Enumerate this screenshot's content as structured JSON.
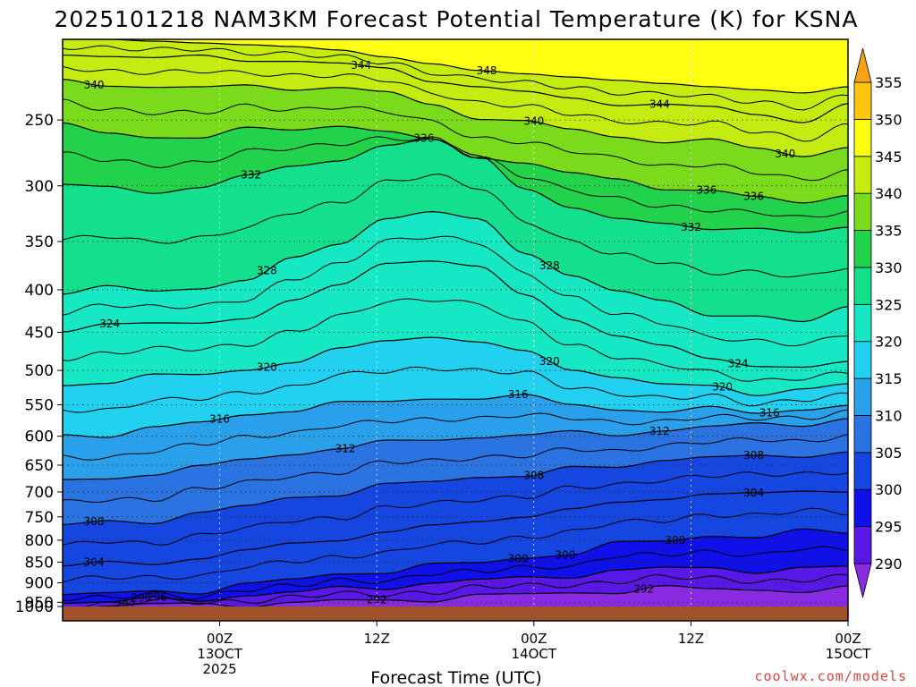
{
  "chart_data": {
    "type": "heatmap",
    "title": "2025101218 NAM3KM Forecast Potential Temperature (K) for KSNA",
    "xlabel": "Forecast Time (UTC)",
    "ylabel": "",
    "credit": "coolwx.com/models",
    "y_axis": {
      "scale": "log-pressure",
      "inverted": true,
      "range": [
        200,
        1000
      ],
      "ticks": [
        250,
        300,
        350,
        400,
        450,
        500,
        550,
        600,
        650,
        700,
        750,
        800,
        850,
        900,
        950,
        1000
      ],
      "tick_labels": [
        "250",
        "300",
        "350",
        "400",
        "450",
        "500",
        "550",
        "600",
        "650",
        "700",
        "750",
        "800",
        "850",
        "900",
        "950",
        "1000"
      ],
      "gridlines": "dotted"
    },
    "x_axis": {
      "range_hours": [
        -10,
        40
      ],
      "ticks": [
        {
          "hour": 0,
          "lines": [
            "00Z",
            "13OCT",
            "2025"
          ]
        },
        {
          "hour": 10,
          "lines": [
            "12Z"
          ]
        },
        {
          "hour": 20,
          "lines": [
            "00Z",
            "14OCT"
          ]
        },
        {
          "hour": 30,
          "lines": [
            "12Z"
          ]
        },
        {
          "hour": 40,
          "lines": [
            "00Z",
            "15OCT"
          ]
        }
      ],
      "gridlines": "dotted"
    },
    "colorbar": {
      "levels": [
        290,
        295,
        300,
        305,
        310,
        315,
        320,
        325,
        330,
        335,
        340,
        345,
        350,
        355
      ],
      "labels": [
        "290",
        "295",
        "300",
        "305",
        "310",
        "315",
        "320",
        "325",
        "330",
        "335",
        "340",
        "345",
        "350",
        "355"
      ],
      "colors": [
        "#8a2be2",
        "#5a18e6",
        "#1010e8",
        "#1546e0",
        "#2a73e0",
        "#2aa0ea",
        "#22d0f0",
        "#17e8c4",
        "#14df8c",
        "#22d24a",
        "#7ada1c",
        "#c4ec10",
        "#ffff12",
        "#ffc60e",
        "#f7a316"
      ]
    },
    "contour_lines": [
      {
        "level": 292,
        "p": [
          968,
          958,
          958,
          956,
          955,
          952,
          948,
          945,
          940,
          935,
          930,
          924,
          920,
          916,
          914,
          916,
          920,
          918
        ]
      },
      {
        "level": 296,
        "p": [
          950,
          948,
          946,
          940,
          932,
          925,
          916,
          908,
          902,
          895,
          888,
          880,
          872,
          866,
          862,
          870,
          868,
          862
        ]
      },
      {
        "level": 300,
        "p": [
          930,
          928,
          925,
          918,
          905,
          893,
          880,
          868,
          860,
          852,
          840,
          826,
          812,
          800,
          790,
          790,
          785,
          780
        ]
      },
      {
        "level": 304,
        "p": [
          860,
          855,
          850,
          840,
          825,
          810,
          795,
          782,
          772,
          760,
          745,
          735,
          725,
          712,
          700,
          705,
          702,
          695
        ]
      },
      {
        "level": 308,
        "p": [
          768,
          762,
          755,
          745,
          728,
          712,
          700,
          690,
          680,
          672,
          665,
          660,
          652,
          640,
          632,
          640,
          632,
          625
        ]
      },
      {
        "level": 312,
        "p": [
          680,
          672,
          665,
          655,
          640,
          628,
          620,
          612,
          605,
          600,
          598,
          596,
          595,
          590,
          585,
          582,
          578,
          572
        ]
      },
      {
        "level": 316,
        "p": [
          600,
          595,
          588,
          578,
          566,
          555,
          550,
          545,
          540,
          538,
          540,
          548,
          556,
          560,
          558,
          560,
          556,
          552
        ]
      },
      {
        "level": 320,
        "p": [
          520,
          515,
          510,
          505,
          498,
          488,
          475,
          458,
          455,
          462,
          478,
          495,
          510,
          520,
          525,
          530,
          528,
          520
        ]
      },
      {
        "level": 324,
        "p": [
          445,
          442,
          440,
          438,
          430,
          415,
          395,
          370,
          368,
          378,
          405,
          432,
          455,
          470,
          482,
          492,
          498,
          490
        ]
      },
      {
        "level": 328,
        "p": [
          402,
          400,
          400,
          398,
          388,
          370,
          350,
          328,
          322,
          332,
          358,
          385,
          402,
          415,
          425,
          432,
          438,
          420
        ]
      },
      {
        "level": 332,
        "p": [
          300,
          302,
          305,
          300,
          293,
          285,
          278,
          268,
          265,
          276,
          300,
          320,
          330,
          332,
          336,
          340,
          342,
          335
        ]
      },
      {
        "level": 336,
        "p": [
          255,
          258,
          262,
          262,
          258,
          255,
          254,
          258,
          266,
          275,
          282,
          290,
          296,
          300,
          305,
          310,
          315,
          305
        ]
      },
      {
        "level": 340,
        "p": [
          225,
          226,
          228,
          229,
          228,
          228,
          229,
          232,
          240,
          247,
          252,
          257,
          262,
          264,
          266,
          270,
          276,
          268
        ]
      },
      {
        "level": 344,
        "p": [
          208,
          209,
          210,
          211,
          211,
          212,
          214,
          218,
          223,
          228,
          232,
          236,
          238,
          240,
          242,
          246,
          250,
          240
        ]
      },
      {
        "level": 348,
        "p": [
          200,
          200,
          201,
          202,
          203,
          204,
          206,
          210,
          214,
          218,
          220,
          222,
          224,
          226,
          228,
          230,
          232,
          228
        ]
      }
    ],
    "contour_labels": [
      {
        "text": "344",
        "level": 344
      },
      {
        "text": "340",
        "level": 340
      },
      {
        "text": "348",
        "level": 348
      },
      {
        "text": "344",
        "level": 344
      },
      {
        "text": "336",
        "level": 336
      },
      {
        "text": "340",
        "level": 340
      },
      {
        "text": "336",
        "level": 336
      },
      {
        "text": "340",
        "level": 340
      },
      {
        "text": "336",
        "level": 336
      },
      {
        "text": "332",
        "level": 332
      },
      {
        "text": "328",
        "level": 328
      },
      {
        "text": "332",
        "level": 332
      },
      {
        "text": "328",
        "level": 328
      },
      {
        "text": "324",
        "level": 324
      },
      {
        "text": "320",
        "level": 320
      },
      {
        "text": "324",
        "level": 324
      },
      {
        "text": "320",
        "level": 320
      },
      {
        "text": "320",
        "level": 320
      },
      {
        "text": "316",
        "level": 316
      },
      {
        "text": "316",
        "level": 316
      },
      {
        "text": "316",
        "level": 316
      },
      {
        "text": "312",
        "level": 312
      },
      {
        "text": "308",
        "level": 308
      },
      {
        "text": "312",
        "level": 312
      },
      {
        "text": "308",
        "level": 308
      },
      {
        "text": "304",
        "level": 304
      },
      {
        "text": "304",
        "level": 304
      },
      {
        "text": "300",
        "level": 300
      },
      {
        "text": "308",
        "level": 308
      },
      {
        "text": "300",
        "level": 300
      },
      {
        "text": "304",
        "level": 304
      },
      {
        "text": "296",
        "level": 296
      },
      {
        "text": "292",
        "level": 292
      },
      {
        "text": "300",
        "level": 300
      },
      {
        "text": "296",
        "level": 296
      },
      {
        "text": "292",
        "level": 292
      },
      {
        "text": "292",
        "level": 292
      }
    ],
    "surface_color": "#a0522d",
    "background": "#ffffff"
  }
}
